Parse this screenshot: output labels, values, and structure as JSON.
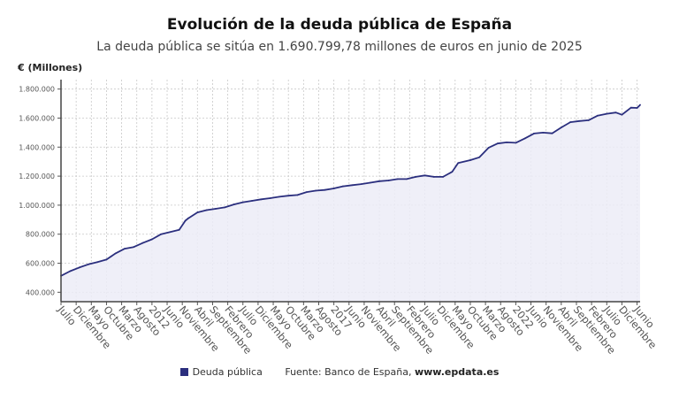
{
  "chart_data": {
    "type": "area",
    "title": "Evolución de la deuda pública de España",
    "subtitle": "La deuda pública se sitúa en 1.690.799,78 millones de euros en junio de 2025",
    "ylabel": "€ (Millones)",
    "xlabel": "",
    "ylim": [
      335000,
      1865000
    ],
    "yticks": [
      400000,
      600000,
      800000,
      1000000,
      1200000,
      1400000,
      1600000,
      1800000
    ],
    "ytick_labels": [
      "400.000",
      "600.000",
      "800.000",
      "1.000.000",
      "1.200.000",
      "1.400.000",
      "1.600.000",
      "1.800.000"
    ],
    "xlim": [
      "2009-07",
      "2025-06"
    ],
    "xtick_labels": [
      "Julio",
      "Diciembre",
      "Mayo",
      "Octubre",
      "Marzo",
      "Agosto",
      "2012",
      "Junio",
      "Noviembre",
      "Abril",
      "Septiembre",
      "Febrero",
      "Julio",
      "Diciembre",
      "Mayo",
      "Octubre",
      "Marzo",
      "Agosto",
      "2017",
      "Junio",
      "Noviembre",
      "Abril",
      "Septiembre",
      "Febrero",
      "Julio",
      "Diciembre",
      "Mayo",
      "Octubre",
      "Marzo",
      "Agosto",
      "2022",
      "Junio",
      "Noviembre",
      "Abril",
      "Septiembre",
      "Febrero",
      "Julio",
      "Diciembre",
      "Junio"
    ],
    "grid": true,
    "legend_position": "bottom",
    "series": [
      {
        "name": "Deuda pública",
        "color": "#2b2f7e",
        "fill": "#ececf7",
        "points": [
          [
            "2009-07",
            513000
          ],
          [
            "2009-10",
            545000
          ],
          [
            "2010-01",
            570000
          ],
          [
            "2010-04",
            592000
          ],
          [
            "2010-07",
            608000
          ],
          [
            "2010-10",
            625000
          ],
          [
            "2011-01",
            668000
          ],
          [
            "2011-04",
            700000
          ],
          [
            "2011-07",
            712000
          ],
          [
            "2011-10",
            740000
          ],
          [
            "2012-01",
            765000
          ],
          [
            "2012-04",
            800000
          ],
          [
            "2012-07",
            815000
          ],
          [
            "2012-10",
            830000
          ],
          [
            "2012-12",
            893000
          ],
          [
            "2013-01",
            910000
          ],
          [
            "2013-04",
            950000
          ],
          [
            "2013-07",
            966000
          ],
          [
            "2013-10",
            975000
          ],
          [
            "2014-01",
            985000
          ],
          [
            "2014-04",
            1005000
          ],
          [
            "2014-07",
            1020000
          ],
          [
            "2014-10",
            1030000
          ],
          [
            "2015-01",
            1040000
          ],
          [
            "2015-04",
            1048000
          ],
          [
            "2015-07",
            1058000
          ],
          [
            "2015-10",
            1065000
          ],
          [
            "2016-01",
            1070000
          ],
          [
            "2016-04",
            1090000
          ],
          [
            "2016-07",
            1100000
          ],
          [
            "2016-10",
            1105000
          ],
          [
            "2017-01",
            1115000
          ],
          [
            "2017-04",
            1130000
          ],
          [
            "2017-07",
            1138000
          ],
          [
            "2017-10",
            1145000
          ],
          [
            "2018-01",
            1155000
          ],
          [
            "2018-04",
            1165000
          ],
          [
            "2018-07",
            1170000
          ],
          [
            "2018-10",
            1180000
          ],
          [
            "2019-01",
            1180000
          ],
          [
            "2019-04",
            1195000
          ],
          [
            "2019-07",
            1205000
          ],
          [
            "2019-10",
            1195000
          ],
          [
            "2020-01",
            1195000
          ],
          [
            "2020-04",
            1230000
          ],
          [
            "2020-06",
            1290000
          ],
          [
            "2020-10",
            1310000
          ],
          [
            "2021-01",
            1330000
          ],
          [
            "2021-04",
            1395000
          ],
          [
            "2021-07",
            1425000
          ],
          [
            "2021-10",
            1433000
          ],
          [
            "2022-01",
            1430000
          ],
          [
            "2022-04",
            1460000
          ],
          [
            "2022-07",
            1494000
          ],
          [
            "2022-10",
            1500000
          ],
          [
            "2023-01",
            1495000
          ],
          [
            "2023-04",
            1535000
          ],
          [
            "2023-07",
            1572000
          ],
          [
            "2023-10",
            1580000
          ],
          [
            "2024-01",
            1585000
          ],
          [
            "2024-04",
            1617000
          ],
          [
            "2024-07",
            1630000
          ],
          [
            "2024-10",
            1638000
          ],
          [
            "2024-12",
            1623000
          ],
          [
            "2025-03",
            1672000
          ],
          [
            "2025-05",
            1670000
          ],
          [
            "2025-06",
            1690799.78
          ]
        ]
      }
    ]
  },
  "legend": {
    "series_label": "Deuda pública",
    "source_prefix": "Fuente: Banco de España,",
    "source_site": "www.epdata.es"
  }
}
